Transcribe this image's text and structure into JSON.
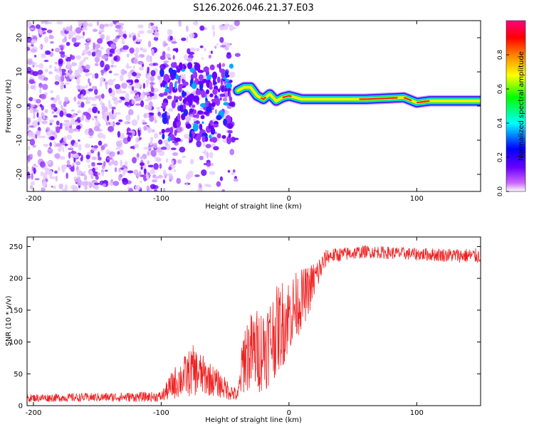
{
  "title": "S126.2026.046.21.37.E03",
  "chart_data": [
    {
      "type": "heatmap",
      "xlabel": "Height of straight line (km)",
      "ylabel": "Frequency (Hz)",
      "xlim": [
        -205,
        150
      ],
      "ylim": [
        -25,
        25
      ],
      "xticks": [
        -200,
        -100,
        0,
        100
      ],
      "yticks": [
        20,
        10,
        0,
        -10,
        -20
      ],
      "colorbar": {
        "label": "Normalized spectral amplitude",
        "range": [
          0,
          1
        ],
        "ticks": [
          0.0,
          0.2,
          0.4,
          0.6,
          0.8
        ],
        "colors": [
          "#ffffff",
          "#cc66ff",
          "#6a00ff",
          "#0000ff",
          "#00ffff",
          "#00ff00",
          "#ffff00",
          "#ff8000",
          "#ff0000",
          "#ff0080"
        ]
      },
      "ridge": [
        {
          "x": -40,
          "f": 4.5
        },
        {
          "x": -35,
          "f": 5.5
        },
        {
          "x": -30,
          "f": 5.5
        },
        {
          "x": -25,
          "f": 3
        },
        {
          "x": -20,
          "f": 2
        },
        {
          "x": -15,
          "f": 3.5
        },
        {
          "x": -10,
          "f": 1.5
        },
        {
          "x": -5,
          "f": 2.5
        },
        {
          "x": 0,
          "f": 3
        },
        {
          "x": 10,
          "f": 2
        },
        {
          "x": 30,
          "f": 2
        },
        {
          "x": 60,
          "f": 2
        },
        {
          "x": 90,
          "f": 2.5
        },
        {
          "x": 100,
          "f": 1
        },
        {
          "x": 110,
          "f": 1.5
        },
        {
          "x": 150,
          "f": 1.5
        }
      ]
    },
    {
      "type": "line",
      "color": "#ee2222",
      "xlabel": "Height of straight line (km)",
      "ylabel": "SNR (10 * v/v)",
      "xlim": [
        -205,
        150
      ],
      "ylim": [
        0,
        265
      ],
      "xticks": [
        -200,
        -100,
        0,
        100
      ],
      "yticks": [
        0,
        50,
        100,
        150,
        200,
        250
      ],
      "envelope": [
        {
          "x": -205,
          "mean": 12,
          "spread": 6
        },
        {
          "x": -100,
          "mean": 14,
          "spread": 8
        },
        {
          "x": -90,
          "mean": 35,
          "spread": 25
        },
        {
          "x": -75,
          "mean": 55,
          "spread": 40
        },
        {
          "x": -60,
          "mean": 40,
          "spread": 25
        },
        {
          "x": -40,
          "mean": 15,
          "spread": 10
        },
        {
          "x": -35,
          "mean": 80,
          "spread": 60
        },
        {
          "x": -20,
          "mean": 90,
          "spread": 70
        },
        {
          "x": -5,
          "mean": 130,
          "spread": 70
        },
        {
          "x": 15,
          "mean": 180,
          "spread": 40
        },
        {
          "x": 30,
          "mean": 235,
          "spread": 12
        },
        {
          "x": 60,
          "mean": 242,
          "spread": 10
        },
        {
          "x": 100,
          "mean": 238,
          "spread": 10
        },
        {
          "x": 150,
          "mean": 235,
          "spread": 12
        }
      ]
    }
  ]
}
